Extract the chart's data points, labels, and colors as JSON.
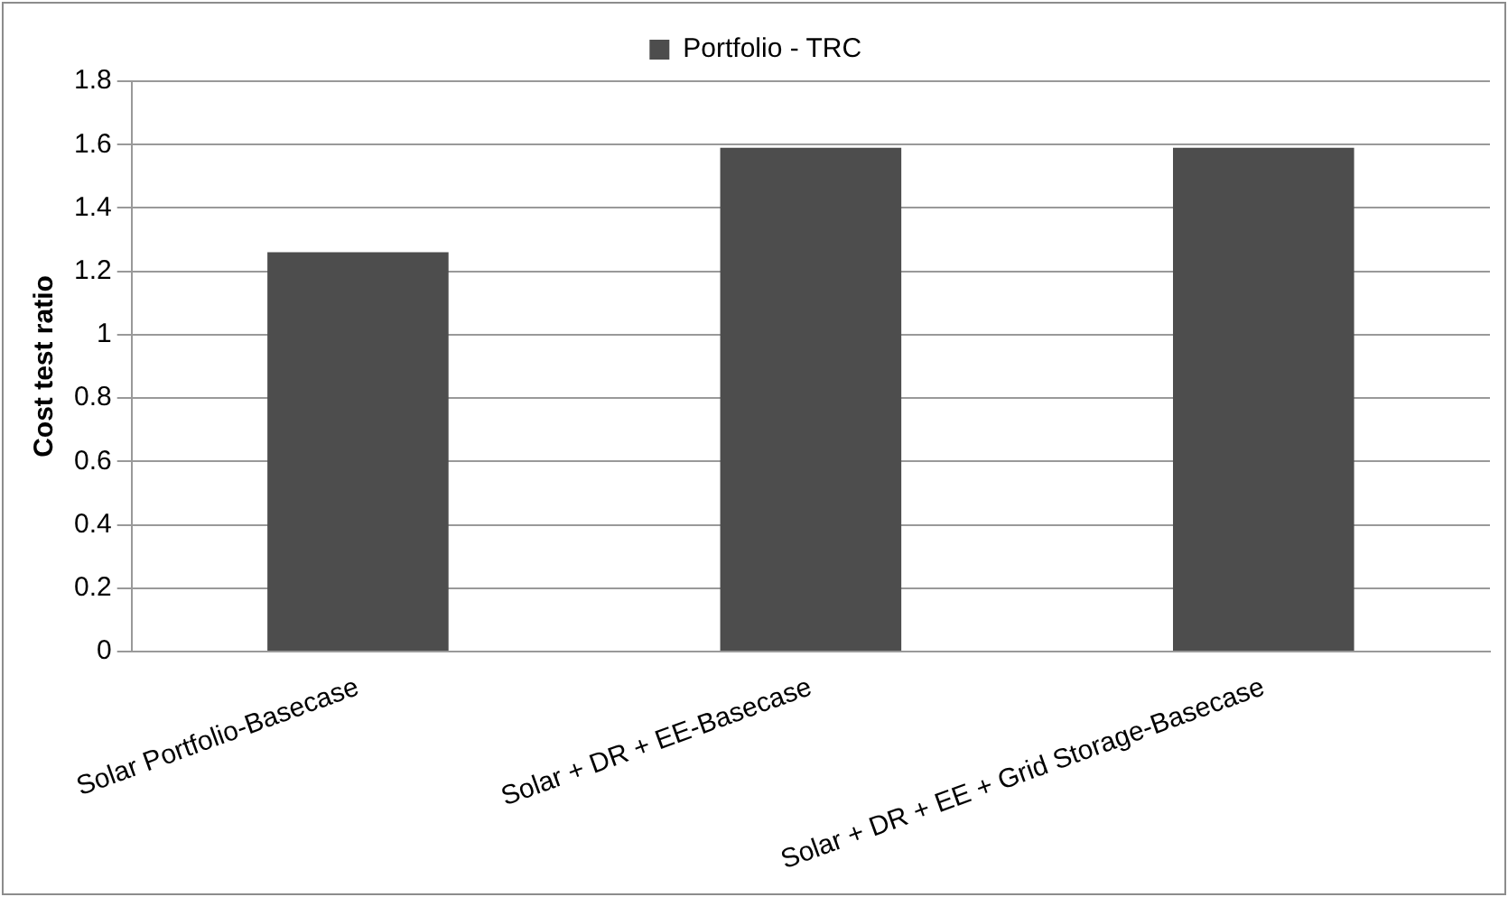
{
  "chart_data": {
    "type": "bar",
    "ylabel": "Cost test ratio",
    "categories": [
      "Solar Portfolio-Basecase",
      "Solar + DR + EE-Basecase",
      "Solar + DR + EE + Grid Storage-Basecase"
    ],
    "series": [
      {
        "name": "Portfolio - TRC",
        "color": "#4d4d4d",
        "values": [
          1.26,
          1.59,
          1.59
        ]
      }
    ],
    "ylim": [
      0,
      1.8
    ],
    "yticks": [
      0,
      0.2,
      0.4,
      0.6,
      0.8,
      1,
      1.2,
      1.4,
      1.6,
      1.8
    ],
    "grid": "y",
    "legend": "top"
  }
}
